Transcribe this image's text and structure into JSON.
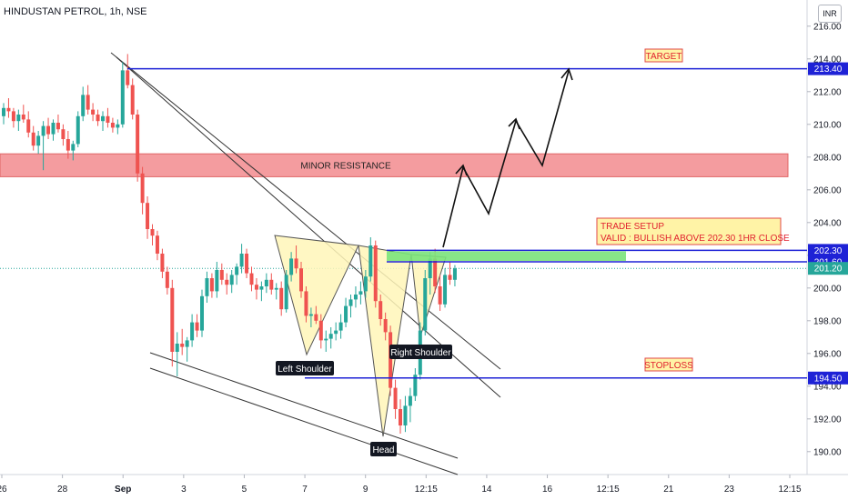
{
  "header": {
    "symbol_title": "HINDUSTAN PETROL, 1h, NSE",
    "currency": "INR"
  },
  "chart_data": {
    "type": "candlestick",
    "ylim": [
      188.6,
      217.6
    ],
    "y_ticks": [
      190,
      192,
      194,
      196,
      198,
      200,
      202,
      204,
      206,
      208,
      210,
      212,
      214,
      216
    ],
    "x_ticks": [
      "26",
      "28",
      "Sep",
      "3",
      "5",
      "7",
      "9",
      "12:15",
      "14",
      "16",
      "12:15",
      "21",
      "23",
      "12:15"
    ],
    "price_labels": [
      {
        "value": 213.4,
        "text": "213.40",
        "color": "#1e22d6"
      },
      {
        "value": 202.3,
        "text": "202.30",
        "color": "#1e22d6"
      },
      {
        "value": 201.6,
        "text": "201.60",
        "color": "#1e22d6"
      },
      {
        "value": 201.2,
        "text": "201.20",
        "color": "#26a69a"
      },
      {
        "value": 194.5,
        "text": "194.50",
        "color": "#1e22d6"
      }
    ],
    "last_price": 201.2,
    "horizontal_levels": [
      213.4,
      202.3,
      201.6,
      194.5
    ],
    "resistance_zone": {
      "low": 206.8,
      "high": 208.2,
      "label": "MINOR RESISTANCE"
    },
    "entry_zone": {
      "low": 201.6,
      "high": 202.3
    },
    "annotations": {
      "target": "TARGET",
      "stoploss": "STOPLOSS",
      "setup_line1": "TRADE SETUP",
      "setup_line2": "VALID : BULLISH ABOVE 202.30 1HR CLOSE",
      "left_shoulder": "Left Shoulder",
      "head": "Head",
      "right_shoulder": "Right Shoulder"
    },
    "candles": [
      [
        210.5,
        211.3,
        210.0,
        211.0
      ],
      [
        211.0,
        211.6,
        210.4,
        210.8
      ],
      [
        210.8,
        211.0,
        209.8,
        210.2
      ],
      [
        210.2,
        210.9,
        209.6,
        210.6
      ],
      [
        210.6,
        211.2,
        210.1,
        210.3
      ],
      [
        210.3,
        210.8,
        209.2,
        209.5
      ],
      [
        209.5,
        209.9,
        208.4,
        208.7
      ],
      [
        208.7,
        209.6,
        208.2,
        209.3
      ],
      [
        209.3,
        210.2,
        207.2,
        209.9
      ],
      [
        209.9,
        210.4,
        209.1,
        209.4
      ],
      [
        209.4,
        210.3,
        209.0,
        210.1
      ],
      [
        210.1,
        210.6,
        209.5,
        209.7
      ],
      [
        209.7,
        210.0,
        208.7,
        209.1
      ],
      [
        209.1,
        209.6,
        207.9,
        208.4
      ],
      [
        208.4,
        209.0,
        207.8,
        208.8
      ],
      [
        208.8,
        210.8,
        208.6,
        210.5
      ],
      [
        210.5,
        212.3,
        210.2,
        211.8
      ],
      [
        211.8,
        212.4,
        210.6,
        210.9
      ],
      [
        210.9,
        211.3,
        210.2,
        210.6
      ],
      [
        210.6,
        210.9,
        209.9,
        210.2
      ],
      [
        210.2,
        210.8,
        209.6,
        210.5
      ],
      [
        210.5,
        211.0,
        209.8,
        210.1
      ],
      [
        210.1,
        210.4,
        209.5,
        209.8
      ],
      [
        209.8,
        210.3,
        209.4,
        210.0
      ],
      [
        210.0,
        213.8,
        209.8,
        213.3
      ],
      [
        213.3,
        214.3,
        212.2,
        212.4
      ],
      [
        212.4,
        212.8,
        210.3,
        210.6
      ],
      [
        210.6,
        210.9,
        206.5,
        207.0
      ],
      [
        207.0,
        207.4,
        204.5,
        205.2
      ],
      [
        205.2,
        205.6,
        203.0,
        203.6
      ],
      [
        203.6,
        203.9,
        202.6,
        203.2
      ],
      [
        203.2,
        203.5,
        201.7,
        202.1
      ],
      [
        202.1,
        202.4,
        200.6,
        201.0
      ],
      [
        201.0,
        201.3,
        199.6,
        200.0
      ],
      [
        200.0,
        200.5,
        195.2,
        196.1
      ],
      [
        196.1,
        197.3,
        194.6,
        196.6
      ],
      [
        196.6,
        197.5,
        195.9,
        196.4
      ],
      [
        196.4,
        197.0,
        195.5,
        196.8
      ],
      [
        196.8,
        198.4,
        196.4,
        197.9
      ],
      [
        197.9,
        198.4,
        197.0,
        197.4
      ],
      [
        197.4,
        199.9,
        197.0,
        199.5
      ],
      [
        199.5,
        201.0,
        199.1,
        200.6
      ],
      [
        200.6,
        200.9,
        199.4,
        199.8
      ],
      [
        199.8,
        201.6,
        199.4,
        201.1
      ],
      [
        201.1,
        201.5,
        200.2,
        200.5
      ],
      [
        200.5,
        200.9,
        199.6,
        200.2
      ],
      [
        200.2,
        201.1,
        199.7,
        200.8
      ],
      [
        200.8,
        201.5,
        200.2,
        201.3
      ],
      [
        201.3,
        202.7,
        200.9,
        202.1
      ],
      [
        202.1,
        202.4,
        200.6,
        200.9
      ],
      [
        200.9,
        201.3,
        199.8,
        200.2
      ],
      [
        200.2,
        200.6,
        199.3,
        199.9
      ],
      [
        199.9,
        200.4,
        199.2,
        200.1
      ],
      [
        200.1,
        200.9,
        199.7,
        200.5
      ],
      [
        200.5,
        200.9,
        199.6,
        199.9
      ],
      [
        199.9,
        200.3,
        199.3,
        200.0
      ],
      [
        200.0,
        200.4,
        198.3,
        198.7
      ],
      [
        198.7,
        201.1,
        198.5,
        200.8
      ],
      [
        200.8,
        202.2,
        200.4,
        201.8
      ],
      [
        201.8,
        202.6,
        200.9,
        201.2
      ],
      [
        201.2,
        201.6,
        199.4,
        199.8
      ],
      [
        199.8,
        200.1,
        197.9,
        198.3
      ],
      [
        198.3,
        198.8,
        197.6,
        198.4
      ],
      [
        198.4,
        198.9,
        197.8,
        198.0
      ],
      [
        198.0,
        198.4,
        196.3,
        196.8
      ],
      [
        196.8,
        197.4,
        196.1,
        196.9
      ],
      [
        196.9,
        197.6,
        196.3,
        197.2
      ],
      [
        197.2,
        197.9,
        196.8,
        197.4
      ],
      [
        197.4,
        198.4,
        196.9,
        197.9
      ],
      [
        197.9,
        199.4,
        197.6,
        198.9
      ],
      [
        198.9,
        199.6,
        198.2,
        199.3
      ],
      [
        199.3,
        200.1,
        198.8,
        199.6
      ],
      [
        199.6,
        200.4,
        199.0,
        199.8
      ],
      [
        199.8,
        201.1,
        199.4,
        200.7
      ],
      [
        200.7,
        203.1,
        200.4,
        202.6
      ],
      [
        202.6,
        202.9,
        198.8,
        199.2
      ],
      [
        199.2,
        199.6,
        197.7,
        198.1
      ],
      [
        198.1,
        198.5,
        196.8,
        197.3
      ],
      [
        197.3,
        197.7,
        193.4,
        193.9
      ],
      [
        193.9,
        194.4,
        192.0,
        192.6
      ],
      [
        192.6,
        193.2,
        191.1,
        191.6
      ],
      [
        191.6,
        193.4,
        191.2,
        192.8
      ],
      [
        192.8,
        193.9,
        191.8,
        193.4
      ],
      [
        193.4,
        195.1,
        193.1,
        194.7
      ],
      [
        194.7,
        197.9,
        194.4,
        197.4
      ],
      [
        197.4,
        201.1,
        197.1,
        200.6
      ],
      [
        200.6,
        202.2,
        199.6,
        201.8
      ],
      [
        201.8,
        202.4,
        199.7,
        200.1
      ],
      [
        200.1,
        200.8,
        198.6,
        199.0
      ],
      [
        199.0,
        201.2,
        198.8,
        200.8
      ],
      [
        200.8,
        201.6,
        200.2,
        200.5
      ],
      [
        200.5,
        201.4,
        200.1,
        201.2
      ]
    ]
  }
}
